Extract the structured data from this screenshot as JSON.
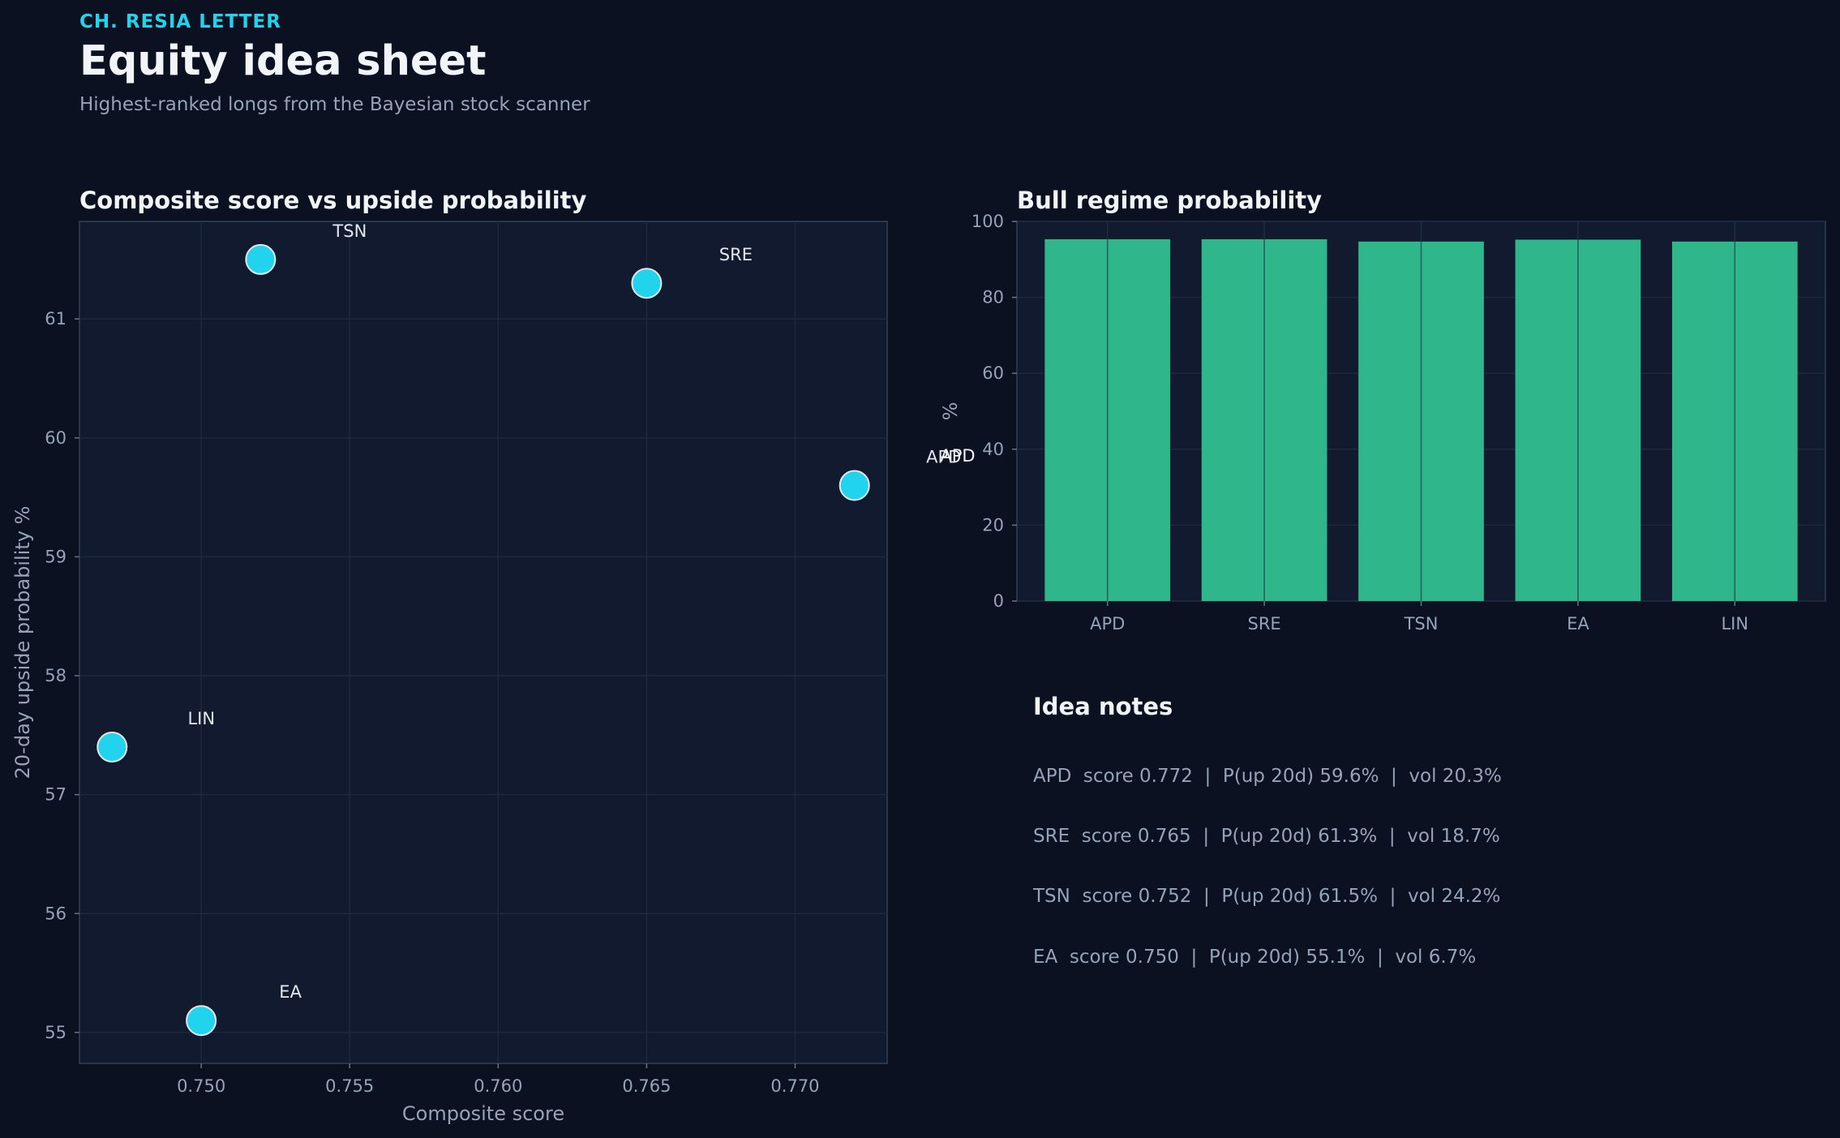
{
  "header": {
    "kicker": "CH. RESIA LETTER",
    "title": "Equity idea sheet",
    "subtitle": "Highest-ranked longs from the Bayesian stock scanner"
  },
  "colors": {
    "background": "#0b1120",
    "panel": "#111a2e",
    "point": "#22d3ee",
    "bar": "#2fb68a",
    "accent": "#22d3ee",
    "muted": "#94a3b8"
  },
  "chart_data": [
    {
      "type": "scatter",
      "title": "Composite score vs upside probability",
      "xlabel": "Composite score",
      "ylabel": "20-day upside probability %",
      "xlim": [
        0.7459,
        0.7731
      ],
      "ylim": [
        54.74,
        61.82
      ],
      "xticks": [
        0.75,
        0.755,
        0.76,
        0.765,
        0.77
      ],
      "xtick_labels": [
        "0.750",
        "0.755",
        "0.760",
        "0.765",
        "0.770"
      ],
      "yticks": [
        55,
        56,
        57,
        58,
        59,
        60,
        61
      ],
      "ytick_labels": [
        "55",
        "56",
        "57",
        "58",
        "59",
        "60",
        "61"
      ],
      "grid": true,
      "points": [
        {
          "label": "APD",
          "x": 0.772,
          "y": 59.6
        },
        {
          "label": "SRE",
          "x": 0.765,
          "y": 61.3
        },
        {
          "label": "TSN",
          "x": 0.752,
          "y": 61.5
        },
        {
          "label": "EA",
          "x": 0.75,
          "y": 55.1
        },
        {
          "label": "LIN",
          "x": 0.747,
          "y": 57.4
        }
      ]
    },
    {
      "type": "bar",
      "title": "Bull regime probability",
      "xlabel": "",
      "ylabel": "%",
      "ylim": [
        0,
        100
      ],
      "yticks": [
        0,
        20,
        40,
        60,
        80,
        100
      ],
      "ytick_labels": [
        "0",
        "20",
        "40",
        "60",
        "80",
        "100"
      ],
      "grid": true,
      "categories": [
        "APD",
        "SRE",
        "TSN",
        "EA",
        "LIN"
      ],
      "values": [
        95.3,
        95.3,
        94.7,
        95.2,
        94.7
      ]
    }
  ],
  "notes": {
    "title": "Idea notes",
    "items": [
      "APD  score 0.772  |  P(up 20d) 59.6%  |  vol 20.3%",
      "SRE  score 0.765  |  P(up 20d) 61.3%  |  vol 18.7%",
      "TSN  score 0.752  |  P(up 20d) 61.5%  |  vol 24.2%",
      "EA  score 0.750  |  P(up 20d) 55.1%  |  vol 6.7%"
    ]
  }
}
